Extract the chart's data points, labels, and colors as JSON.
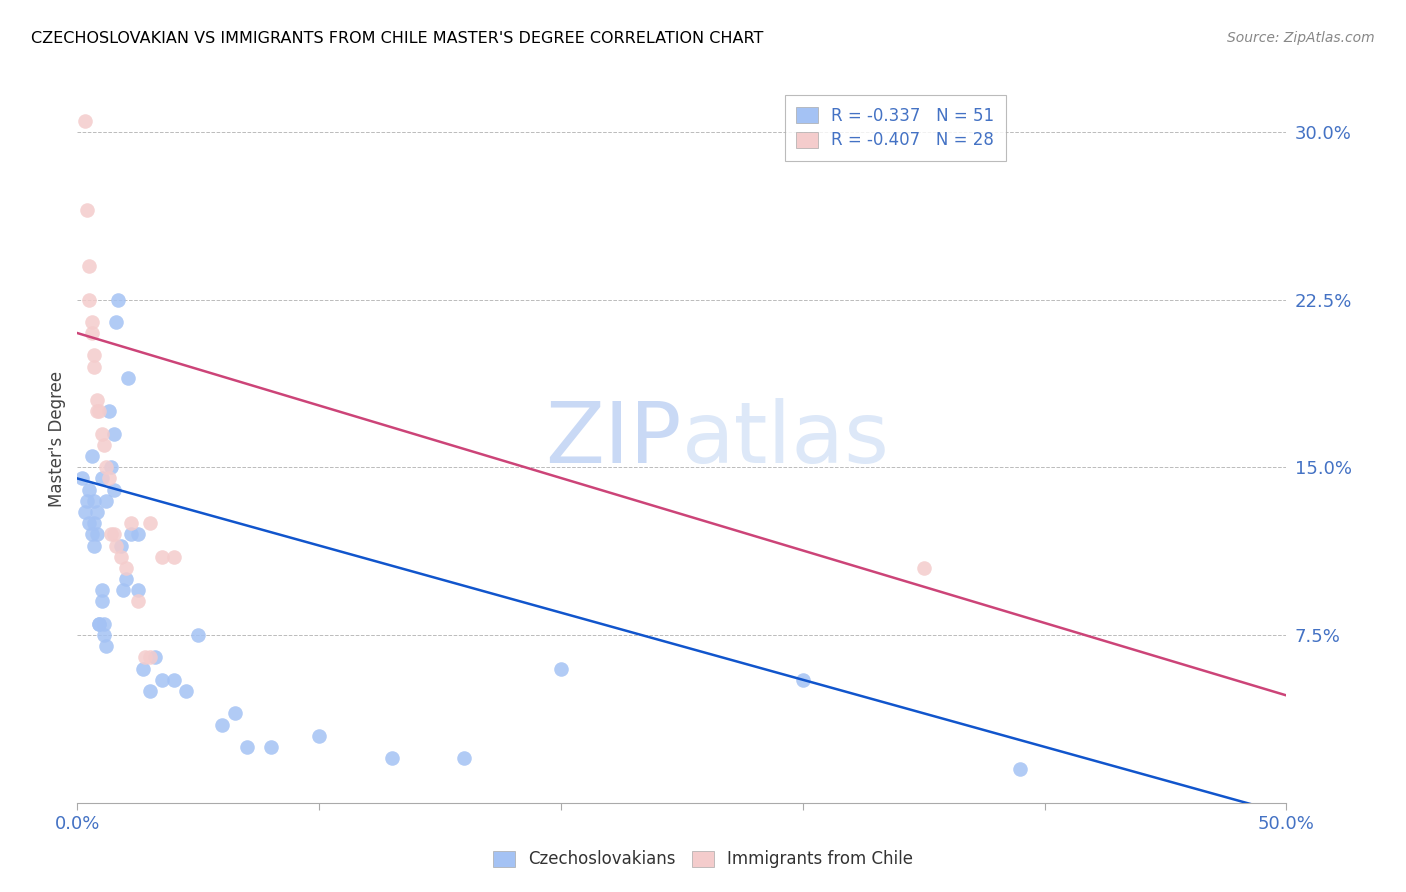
{
  "title": "CZECHOSLOVAKIAN VS IMMIGRANTS FROM CHILE MASTER'S DEGREE CORRELATION CHART",
  "source": "Source: ZipAtlas.com",
  "ylabel": "Master's Degree",
  "ytick_labels": [
    "7.5%",
    "15.0%",
    "22.5%",
    "30.0%"
  ],
  "ytick_values": [
    0.075,
    0.15,
    0.225,
    0.3
  ],
  "xlim": [
    0.0,
    0.5
  ],
  "ylim": [
    0.0,
    0.325
  ],
  "xtick_positions": [
    0.0,
    0.1,
    0.2,
    0.3,
    0.4,
    0.5
  ],
  "watermark_zip": "ZIP",
  "watermark_atlas": "atlas",
  "blue_legend_r": "R = ",
  "blue_legend_rv": "-0.337",
  "blue_legend_n": "   N = ",
  "blue_legend_nv": "51",
  "pink_legend_r": "R = ",
  "pink_legend_rv": "-0.407",
  "pink_legend_n": "   N = ",
  "pink_legend_nv": "28",
  "blue_scatter_x": [
    0.002,
    0.003,
    0.004,
    0.005,
    0.005,
    0.006,
    0.006,
    0.007,
    0.007,
    0.007,
    0.008,
    0.008,
    0.009,
    0.009,
    0.01,
    0.01,
    0.01,
    0.011,
    0.011,
    0.012,
    0.012,
    0.013,
    0.014,
    0.015,
    0.015,
    0.016,
    0.017,
    0.018,
    0.019,
    0.02,
    0.021,
    0.022,
    0.025,
    0.025,
    0.027,
    0.03,
    0.032,
    0.035,
    0.04,
    0.045,
    0.05,
    0.06,
    0.065,
    0.07,
    0.08,
    0.1,
    0.13,
    0.16,
    0.2,
    0.3,
    0.39
  ],
  "blue_scatter_y": [
    0.145,
    0.13,
    0.135,
    0.14,
    0.125,
    0.155,
    0.12,
    0.135,
    0.125,
    0.115,
    0.13,
    0.12,
    0.08,
    0.08,
    0.09,
    0.095,
    0.145,
    0.08,
    0.075,
    0.07,
    0.135,
    0.175,
    0.15,
    0.14,
    0.165,
    0.215,
    0.225,
    0.115,
    0.095,
    0.1,
    0.19,
    0.12,
    0.12,
    0.095,
    0.06,
    0.05,
    0.065,
    0.055,
    0.055,
    0.05,
    0.075,
    0.035,
    0.04,
    0.025,
    0.025,
    0.03,
    0.02,
    0.02,
    0.06,
    0.055,
    0.015
  ],
  "pink_scatter_x": [
    0.003,
    0.004,
    0.005,
    0.005,
    0.006,
    0.006,
    0.007,
    0.007,
    0.008,
    0.008,
    0.009,
    0.01,
    0.011,
    0.012,
    0.013,
    0.014,
    0.015,
    0.016,
    0.018,
    0.02,
    0.022,
    0.025,
    0.028,
    0.03,
    0.03,
    0.035,
    0.04,
    0.35
  ],
  "pink_scatter_y": [
    0.305,
    0.265,
    0.24,
    0.225,
    0.215,
    0.21,
    0.2,
    0.195,
    0.18,
    0.175,
    0.175,
    0.165,
    0.16,
    0.15,
    0.145,
    0.12,
    0.12,
    0.115,
    0.11,
    0.105,
    0.125,
    0.09,
    0.065,
    0.125,
    0.065,
    0.11,
    0.11,
    0.105
  ],
  "blue_line_x": [
    0.0,
    0.5
  ],
  "blue_line_y": [
    0.145,
    -0.005
  ],
  "pink_line_x": [
    0.0,
    0.5
  ],
  "pink_line_y": [
    0.21,
    0.048
  ],
  "blue_color": "#a4c2f4",
  "pink_color": "#f4cccc",
  "blue_line_color": "#1155cc",
  "pink_line_color": "#cc4478",
  "tick_label_color": "#4472c4",
  "title_color": "#000000",
  "watermark_color": "#c9d9f5",
  "grid_color": "#bbbbbb",
  "background_color": "#ffffff"
}
